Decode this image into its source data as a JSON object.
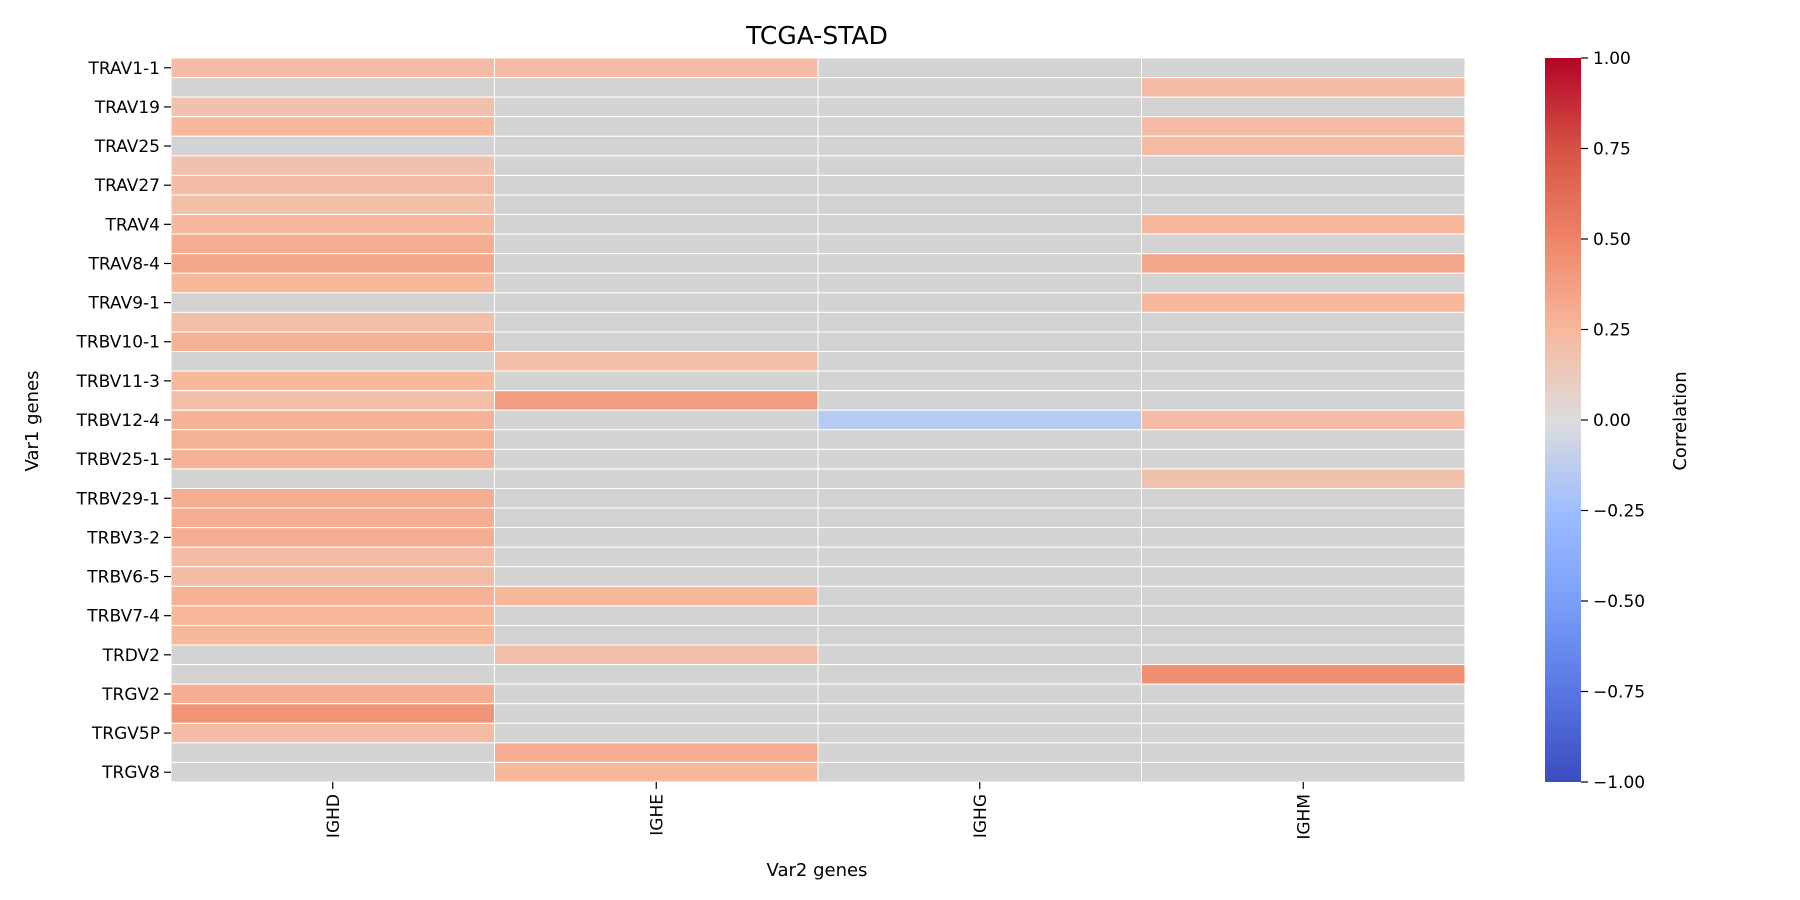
{
  "chart_data": {
    "type": "heatmap",
    "title": "TCGA-STAD",
    "xlabel": "Var2 genes",
    "ylabel": "Var1 genes",
    "x_categories": [
      "IGHD",
      "IGHE",
      "IGHG",
      "IGHM"
    ],
    "y_tick_labels": [
      "TRAV1-1",
      "TRAV19",
      "TRAV25",
      "TRAV27",
      "TRAV4",
      "TRAV8-4",
      "TRAV9-1",
      "TRBV10-1",
      "TRBV11-3",
      "TRBV12-4",
      "TRBV25-1",
      "TRBV29-1",
      "TRBV3-2",
      "TRBV6-5",
      "TRBV7-4",
      "TRDV2",
      "TRGV2",
      "TRGV5P",
      "TRGV8"
    ],
    "y_tick_every": 2,
    "n_rows": 37,
    "values": [
      [
        0.22,
        0.22,
        0,
        0
      ],
      [
        0,
        0,
        0,
        0.22
      ],
      [
        0.18,
        0,
        0,
        0
      ],
      [
        0.25,
        0,
        0,
        0.22
      ],
      [
        0,
        0,
        0,
        0.22
      ],
      [
        0.18,
        0,
        0,
        0
      ],
      [
        0.22,
        0,
        0,
        0
      ],
      [
        0.2,
        0,
        0,
        0
      ],
      [
        0.25,
        0,
        0,
        0.25
      ],
      [
        0.3,
        0,
        0,
        0
      ],
      [
        0.32,
        0,
        0,
        0.32
      ],
      [
        0.25,
        0,
        0,
        0
      ],
      [
        0,
        0,
        0,
        0.25
      ],
      [
        0.2,
        0,
        0,
        0
      ],
      [
        0.28,
        0,
        0,
        0
      ],
      [
        0,
        0.2,
        0,
        0
      ],
      [
        0.25,
        0,
        0,
        0
      ],
      [
        0.2,
        0.38,
        0,
        0
      ],
      [
        0.28,
        0,
        -0.15,
        0.22
      ],
      [
        0.28,
        0,
        0,
        0
      ],
      [
        0.28,
        0,
        0,
        0
      ],
      [
        0,
        0,
        0,
        0.18
      ],
      [
        0.3,
        0,
        0,
        0
      ],
      [
        0.3,
        0,
        0,
        0
      ],
      [
        0.3,
        0,
        0,
        0
      ],
      [
        0.22,
        0,
        0,
        0
      ],
      [
        0.22,
        0,
        0,
        0
      ],
      [
        0.28,
        0.25,
        0,
        0
      ],
      [
        0.25,
        0,
        0,
        0
      ],
      [
        0.25,
        0,
        0,
        0
      ],
      [
        0,
        0.2,
        0,
        0
      ],
      [
        0,
        0,
        0,
        0.45
      ],
      [
        0.3,
        0,
        0,
        0
      ],
      [
        0.42,
        0,
        0,
        0
      ],
      [
        0.22,
        0,
        0,
        0
      ],
      [
        0,
        0.3,
        0,
        0
      ],
      [
        0,
        0.25,
        0,
        0
      ]
    ],
    "color_range": [
      -1.0,
      1.0
    ],
    "colormap": "coolwarm",
    "colorbar": {
      "label": "Correlation",
      "ticks": [
        "1.00",
        "0.75",
        "0.50",
        "0.25",
        "0.00",
        "−0.25",
        "−0.50",
        "−0.75",
        "−1.00"
      ],
      "tick_values": [
        1.0,
        0.75,
        0.5,
        0.25,
        0.0,
        -0.25,
        -0.5,
        -0.75,
        -1.0
      ]
    },
    "zero_cell_color": "#d3d3d3",
    "grid_line_color": "#ffffff",
    "legend": "colorbar-right"
  }
}
